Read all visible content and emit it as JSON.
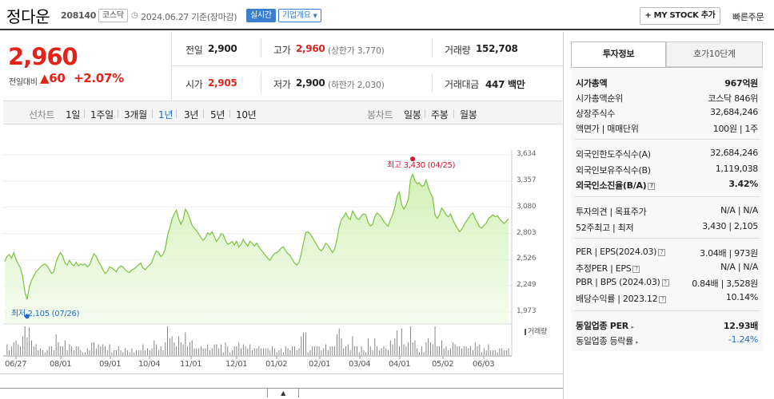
{
  "header": {
    "name": "정다운",
    "code": "208140",
    "market": "코스닥",
    "date": "2024.06.27 기준(장마감)",
    "realtime": "실시간",
    "corp_info": "기업개요",
    "mystock": "+ MY STOCK 추가",
    "quick_order": "빠른주문"
  },
  "price": {
    "current": "2,960",
    "change_label": "전일대비",
    "change_value": "60",
    "change_pct": "+2.07%"
  },
  "quote": {
    "prev_label": "전일",
    "prev": "2,900",
    "high_label": "고가",
    "high": "2,960",
    "upper_limit": "(상한가 3,770)",
    "volume_label": "거래량",
    "volume": "152,708",
    "open_label": "시가",
    "open": "2,905",
    "low_label": "저가",
    "low": "2,900",
    "lower_limit": "(하한가 2,030)",
    "amount_label": "거래대금",
    "amount": "447 백만"
  },
  "periods": {
    "line_label": "선차트",
    "items": [
      "1일",
      "1주일",
      "3개월",
      "1년",
      "3년",
      "5년",
      "10년"
    ],
    "active": "1년",
    "candle_label": "봉차트",
    "candle_items": [
      "일봉",
      "주봉",
      "월봉"
    ]
  },
  "chart_data": {
    "type": "area",
    "y_ticks": [
      "3,634",
      "3,357",
      "3,080",
      "2,803",
      "2,526",
      "2,249",
      "1,973"
    ],
    "ylim": [
      1973,
      3634
    ],
    "x_ticks": [
      "06/27",
      "08/01",
      "09/01",
      "10/04",
      "11/01",
      "12/01",
      "01/02",
      "02/01",
      "03/04",
      "04/01",
      "05/02",
      "06/03"
    ],
    "high_label": "최고 3,430 (04/25)",
    "low_label": "최저 2,105 (07/26)",
    "volume_label": "거래량",
    "values": [
      2510,
      2560,
      2580,
      2540,
      2600,
      2530,
      2480,
      2440,
      2350,
      2190,
      2105,
      2240,
      2310,
      2350,
      2400,
      2420,
      2450,
      2470,
      2480,
      2460,
      2420,
      2380,
      2400,
      2500,
      2560,
      2600,
      2560,
      2490,
      2470,
      2520,
      2480,
      2460,
      2500,
      2460,
      2480,
      2470,
      2480,
      2450,
      2470,
      2530,
      2590,
      2560,
      2510,
      2470,
      2420,
      2380,
      2400,
      2450,
      2440,
      2420,
      2400,
      2440,
      2460,
      2450,
      2420,
      2400,
      2390,
      2420,
      2430,
      2450,
      2470,
      2490,
      2440,
      2420,
      2450,
      2470,
      2500,
      2570,
      2620,
      2600,
      2560,
      2580,
      2640,
      2780,
      2860,
      2950,
      3010,
      3050,
      2960,
      2900,
      2950,
      3060,
      3020,
      2960,
      2890,
      2860,
      2830,
      2800,
      2760,
      2730,
      2760,
      2810,
      2790,
      2820,
      2770,
      2720,
      2750,
      2800,
      2790,
      2730,
      2690,
      2700,
      2720,
      2680,
      2720,
      2660,
      2690,
      2740,
      2700,
      2670,
      2720,
      2700,
      2670,
      2700,
      2660,
      2630,
      2600,
      2570,
      2540,
      2520,
      2560,
      2590,
      2600,
      2620,
      2650,
      2660,
      2620,
      2590,
      2570,
      2530,
      2490,
      2470,
      2500,
      2590,
      2700,
      2810,
      2820,
      2800,
      2760,
      2720,
      2680,
      2640,
      2620,
      2650,
      2700,
      2680,
      2640,
      2600,
      2640,
      2740,
      2870,
      2950,
      2980,
      3020,
      2970,
      2950,
      3040,
      3000,
      2960,
      2950,
      2990,
      3010,
      3000,
      2920,
      2880,
      2900,
      2980,
      3020,
      3000,
      2970,
      2930,
      2900,
      2880,
      2950,
      3000,
      3080,
      3200,
      3240,
      3110,
      3060,
      3100,
      3160,
      3370,
      3430,
      3360,
      3330,
      3340,
      3300,
      3310,
      3370,
      3290,
      3230,
      3180,
      3000,
      2960,
      3000,
      3070,
      3040,
      3000,
      2980,
      3010,
      2950,
      2900,
      2860,
      2820,
      2850,
      2890,
      2930,
      2960,
      3000,
      3020,
      2960,
      2920,
      2870,
      2860,
      2890,
      2910,
      2960,
      2980,
      3000,
      2980,
      2990,
      2960,
      2930,
      2910,
      2930,
      2960
    ]
  },
  "tabs": {
    "invest": "투자정보",
    "hoga": "호가10단계"
  },
  "info": {
    "mcap_label": "시가총액",
    "mcap": "967억원",
    "rank_label": "시가총액순위",
    "rank": "코스닥 846위",
    "shares_label": "상장주식수",
    "shares": "32,684,246",
    "face_label": "액면가 | 매매단위",
    "face": "100원 | 1주",
    "foreign_limit_label": "외국인한도주식수(A)",
    "foreign_limit": "32,684,246",
    "foreign_hold_label": "외국인보유주식수(B)",
    "foreign_hold": "1,119,038",
    "foreign_rate_label": "외국인소진율(B/A)",
    "foreign_rate": "3.42%",
    "opinion_label": "투자의견 | 목표주가",
    "opinion": "N/A | N/A",
    "week52_label": "52주최고 | 최저",
    "week52": "3,430 | 2,105",
    "per_label": "PER | EPS(2024.03)",
    "per": "3.04배 | 973원",
    "est_per_label": "추정PER | EPS",
    "est_per": "N/A | N/A",
    "pbr_label": "PBR | BPS (2024.03)",
    "pbr": "0.84배 | 3,528원",
    "div_label": "배당수익률 | 2023.12",
    "div": "10.14%",
    "ind_per_label": "동일업종 PER",
    "ind_per": "12.93배",
    "ind_rate_label": "동일업종 등락률",
    "ind_rate": "-1.24%"
  },
  "colors": {
    "up": "#e1231a",
    "down": "#1e6ccf",
    "line": "#7bc142"
  }
}
